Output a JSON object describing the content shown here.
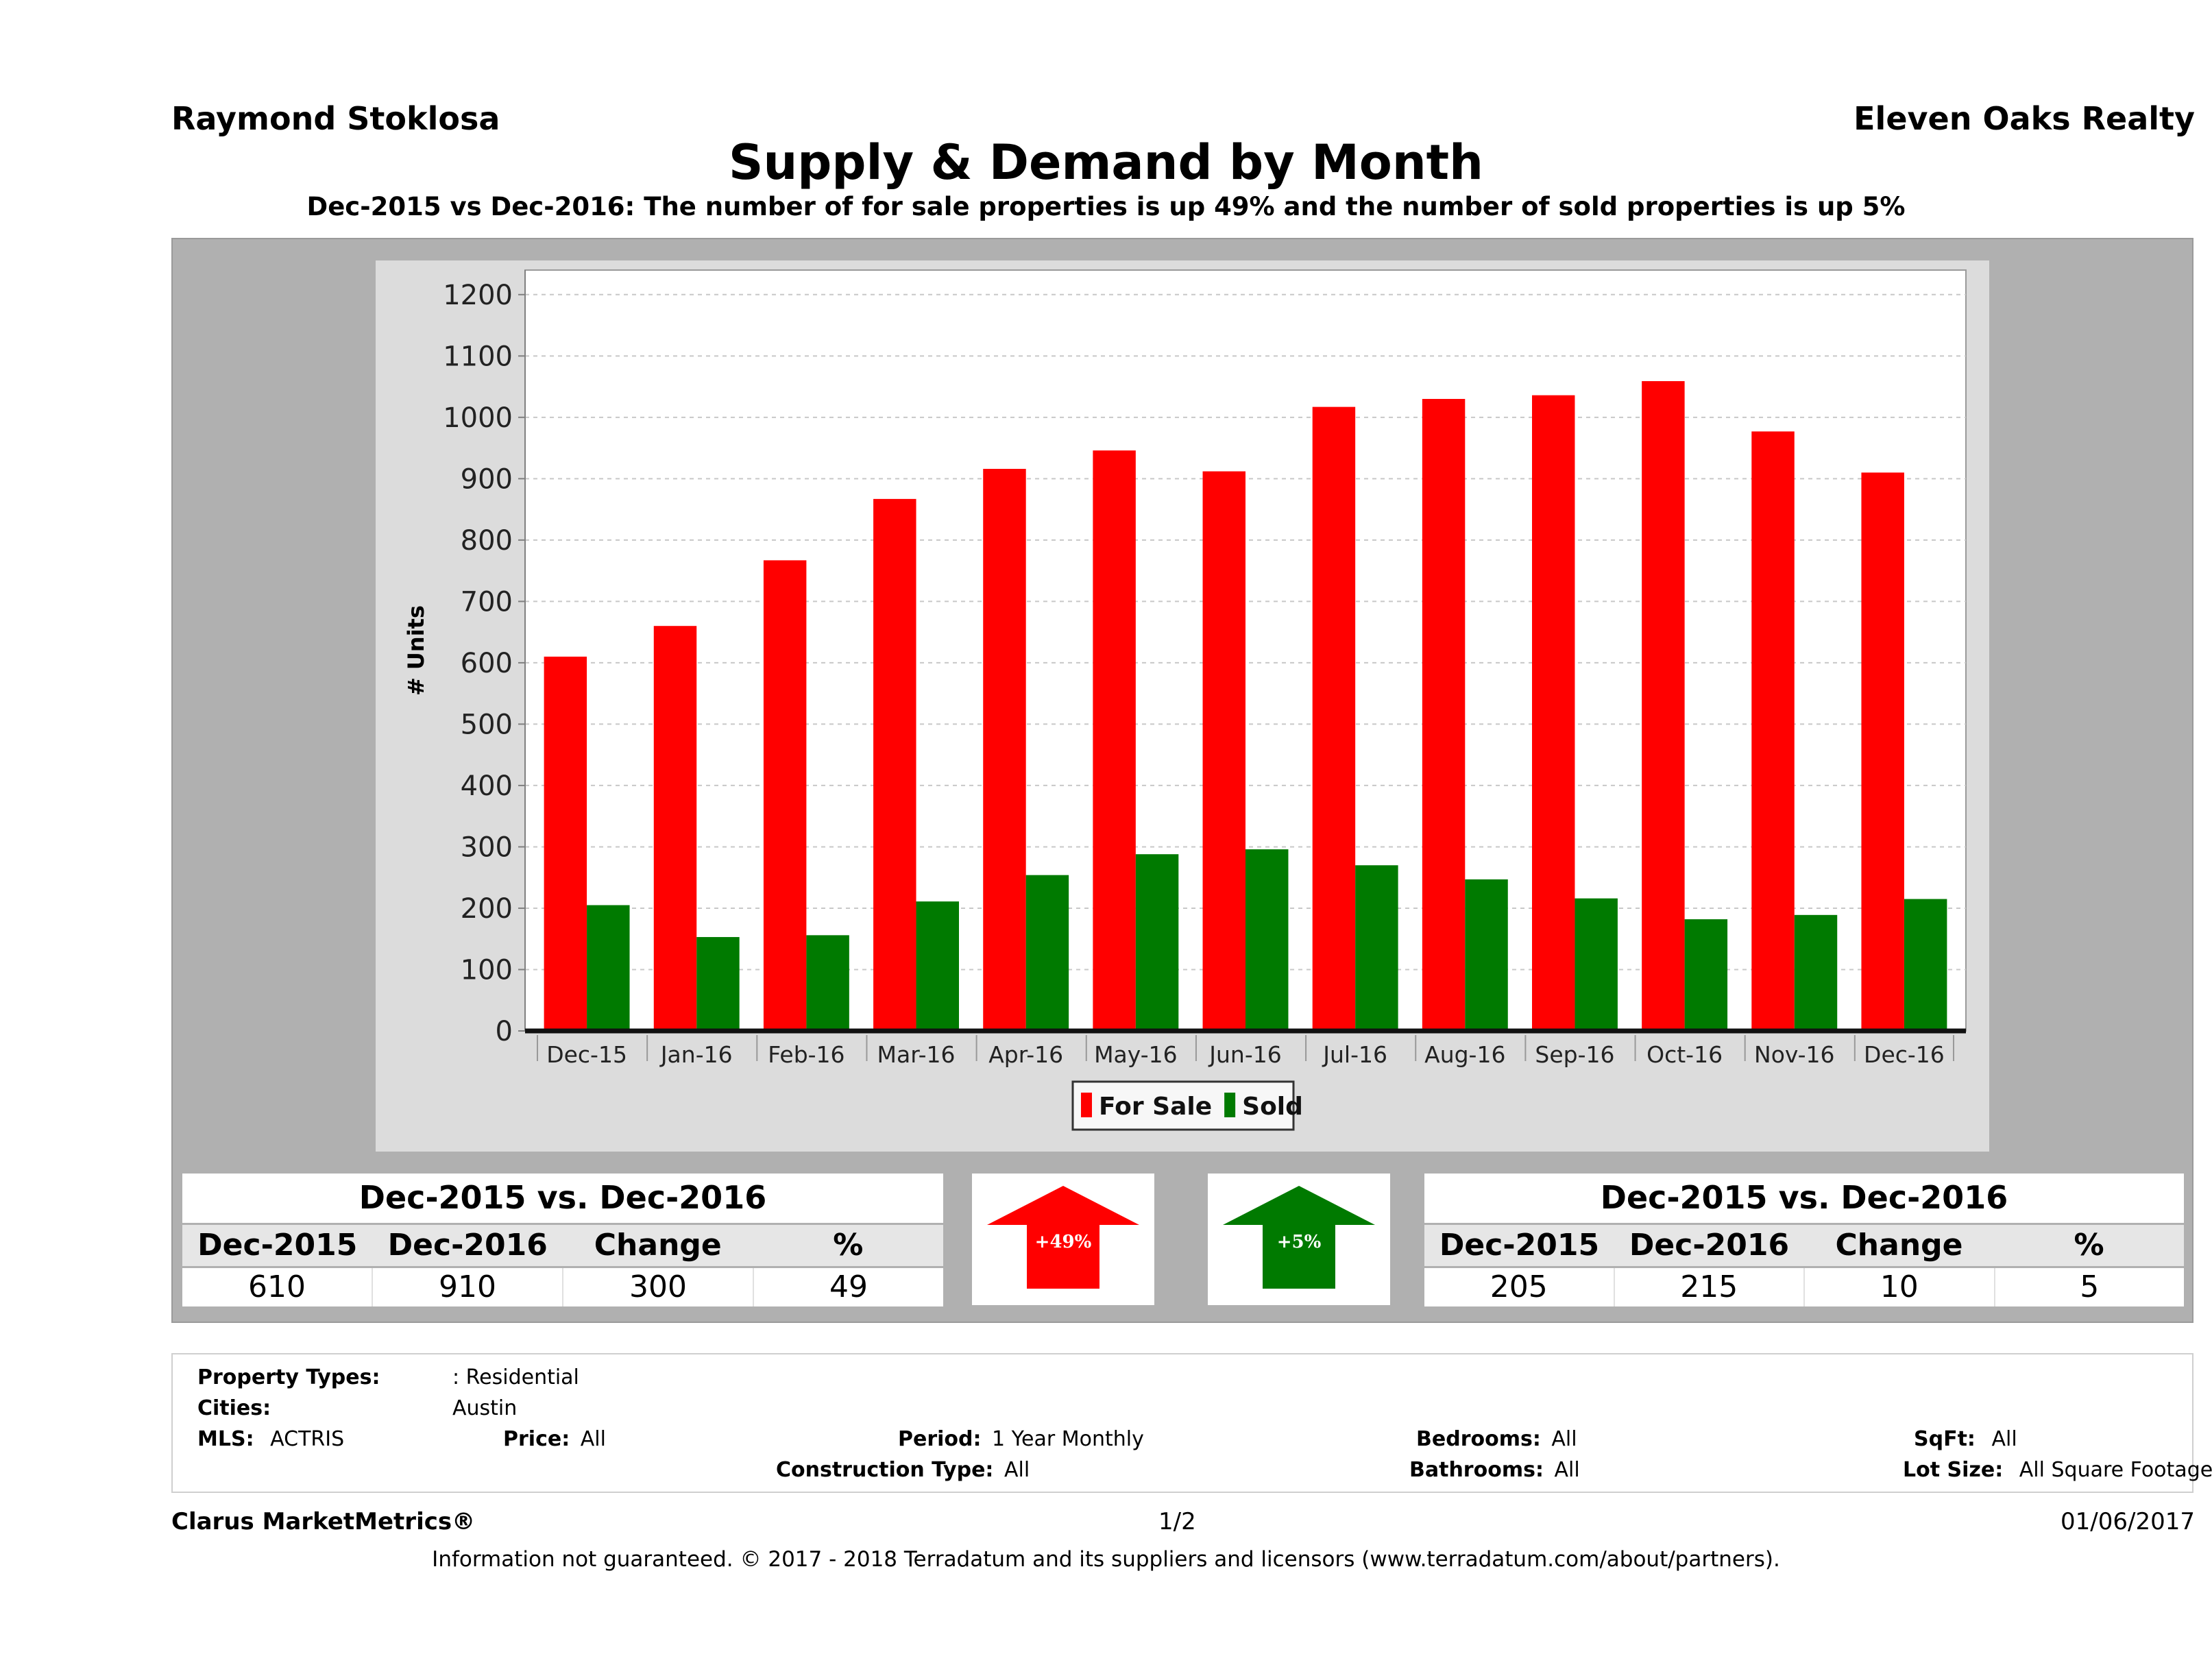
{
  "header": {
    "agent_name": "Raymond Stoklosa",
    "brokerage": "Eleven Oaks Realty",
    "title": "Supply & Demand by Month",
    "subtitle": "Dec-2015 vs Dec-2016: The number of for sale properties is up 49% and the number of sold properties is up 5%"
  },
  "chart_data": {
    "type": "bar",
    "title": "Supply & Demand by Month",
    "xlabel": "",
    "ylabel": "# Units",
    "ylim": [
      0,
      1240
    ],
    "yticks": [
      0,
      100,
      200,
      300,
      400,
      500,
      600,
      700,
      800,
      900,
      1000,
      1100,
      1200
    ],
    "grid": true,
    "legend_position": "bottom-center",
    "categories": [
      "Dec-15",
      "Jan-16",
      "Feb-16",
      "Mar-16",
      "Apr-16",
      "May-16",
      "Jun-16",
      "Jul-16",
      "Aug-16",
      "Sep-16",
      "Oct-16",
      "Nov-16",
      "Dec-16"
    ],
    "series": [
      {
        "name": "For Sale",
        "color": "#ff0000",
        "values": [
          610,
          660,
          767,
          867,
          916,
          946,
          912,
          1017,
          1030,
          1036,
          1059,
          977,
          910
        ]
      },
      {
        "name": "Sold",
        "color": "#007a00",
        "values": [
          205,
          153,
          156,
          211,
          254,
          288,
          296,
          270,
          247,
          216,
          182,
          189,
          215
        ]
      }
    ]
  },
  "summary_left": {
    "heading": "Dec-2015 vs. Dec-2016",
    "columns": [
      "Dec-2015",
      "Dec-2016",
      "Change",
      "%"
    ],
    "values": [
      "610",
      "910",
      "300",
      "49"
    ]
  },
  "summary_right": {
    "heading": "Dec-2015 vs. Dec-2016",
    "columns": [
      "Dec-2015",
      "Dec-2016",
      "Change",
      "%"
    ],
    "values": [
      "205",
      "215",
      "10",
      "5"
    ]
  },
  "arrows": {
    "for_sale": {
      "label": "+49%",
      "color": "#ff0000",
      "direction": "up"
    },
    "sold": {
      "label": "+5%",
      "color": "#007a00",
      "direction": "up"
    }
  },
  "details": {
    "property_types_label": "Property Types:",
    "property_types_value": ": Residential",
    "cities_label": "Cities:",
    "cities_value": "Austin",
    "mls_label": "MLS:",
    "mls_value": "ACTRIS",
    "price_label": "Price:",
    "price_value": "All",
    "period_label": "Period:",
    "period_value": "1 Year Monthly",
    "bedrooms_label": "Bedrooms:",
    "bedrooms_value": "All",
    "sqft_label": "SqFt:",
    "sqft_value": "All",
    "construction_label": "Construction Type:",
    "construction_value": "All",
    "bathrooms_label": "Bathrooms:",
    "bathrooms_value": "All",
    "lot_size_label": "Lot Size:",
    "lot_size_value": "All Square Footage"
  },
  "footer": {
    "brand": "Clarus MarketMetrics®",
    "page": "1/2",
    "date": "01/06/2017",
    "disclaimer": "Information not guaranteed. © 2017 - 2018 Terradatum and its suppliers and licensors (www.terradatum.com/about/partners)."
  }
}
